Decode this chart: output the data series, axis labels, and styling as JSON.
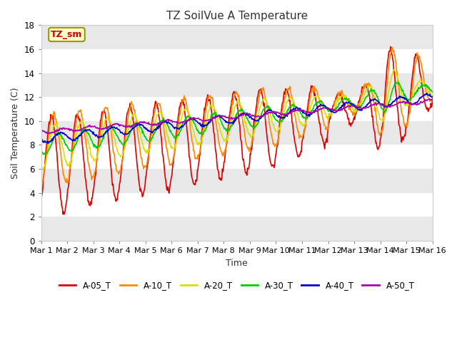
{
  "title": "TZ SoilVue A Temperature",
  "xlabel": "Time",
  "ylabel": "Soil Temperature (C)",
  "ylim": [
    0,
    18
  ],
  "yticks": [
    0,
    2,
    4,
    6,
    8,
    10,
    12,
    14,
    16,
    18
  ],
  "xtick_labels": [
    "Mar 1",
    "Mar 2",
    "Mar 3",
    "Mar 4",
    "Mar 5",
    "Mar 6",
    "Mar 7",
    "Mar 8",
    "Mar 9",
    "Mar 10",
    "Mar 11",
    "Mar 12",
    "Mar 13",
    "Mar 14",
    "Mar 15",
    "Mar 16"
  ],
  "annotation_text": "TZ_sm",
  "annotation_box_color": "#ffffcc",
  "annotation_text_color": "#cc0000",
  "fig_bg_color": "#ffffff",
  "plot_bg_color": "#ffffff",
  "grid_band_color": "#e8e8e8",
  "series_order": [
    "A-05_T",
    "A-10_T",
    "A-20_T",
    "A-30_T",
    "A-40_T",
    "A-50_T"
  ],
  "series": {
    "A-05_T": {
      "color": "#dd0000",
      "lw": 1.2
    },
    "A-10_T": {
      "color": "#ff8800",
      "lw": 1.2
    },
    "A-20_T": {
      "color": "#dddd00",
      "lw": 1.2
    },
    "A-30_T": {
      "color": "#00cc00",
      "lw": 1.2
    },
    "A-40_T": {
      "color": "#0000cc",
      "lw": 1.2
    },
    "A-50_T": {
      "color": "#aa00aa",
      "lw": 1.2
    }
  },
  "n_days": 15,
  "pts_per_day": 48
}
